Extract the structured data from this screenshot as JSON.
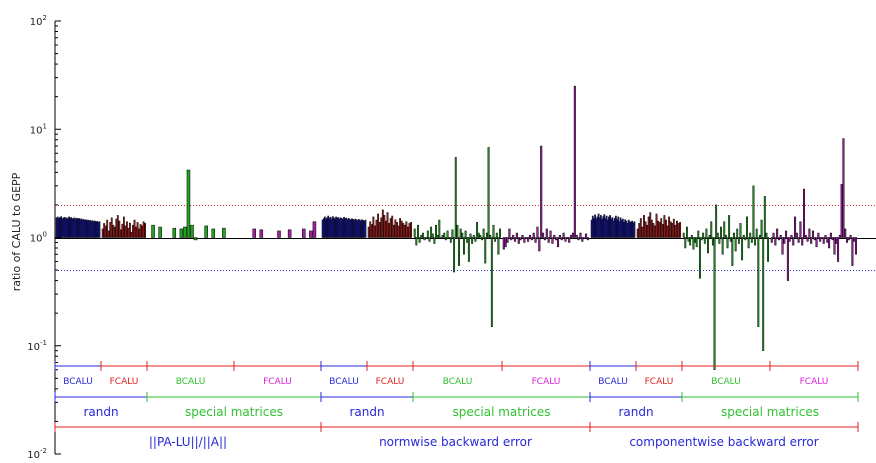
{
  "chart_data": {
    "type": "bar",
    "ylabel": "ratio of CALU to GEPP",
    "yscale": "log",
    "ylim": [
      0.01,
      100
    ],
    "yticks": [
      {
        "value": 100,
        "base": "10",
        "exp": "2"
      },
      {
        "value": 10,
        "base": "10",
        "exp": "1"
      },
      {
        "value": 1,
        "base": "10",
        "exp": "0"
      },
      {
        "value": 0.1,
        "base": "10",
        "exp": "-1"
      },
      {
        "value": 0.01,
        "base": "10",
        "exp": "-2"
      }
    ],
    "reference_lines": [
      {
        "value": 1,
        "style": "solid",
        "color": "#000000"
      },
      {
        "value": 2,
        "style": "dotted",
        "color": "#d03030"
      },
      {
        "value": 0.5,
        "style": "dotted",
        "color": "#3030d0"
      }
    ],
    "colors": {
      "BCALU_randn": "#1c1ca8",
      "FCALU_randn": "#a82020",
      "BCALU_special": "#1fa01f",
      "FCALU_special": "#a020a0",
      "label_blue": "#2828d8",
      "label_red": "#e02020",
      "label_green": "#30c030",
      "label_magenta": "#e020e0"
    },
    "groups": [
      {
        "name": "BCALU",
        "matrices": "randn",
        "metric": "||PA-LU||/||A||",
        "color": "#1c1ca8",
        "values": [
          1.52,
          1.55,
          1.5,
          1.53,
          1.56,
          1.49,
          1.51,
          1.54,
          1.5,
          1.52,
          1.48,
          1.55,
          1.51,
          1.53,
          1.49,
          1.5,
          1.52,
          1.47,
          1.51,
          1.48,
          1.5,
          1.46,
          1.49,
          1.45,
          1.47,
          1.44,
          1.46,
          1.43,
          1.45,
          1.42,
          1.44,
          1.41,
          1.43,
          1.4,
          1.42,
          1.39,
          1.41,
          1.38,
          1.4
        ]
      },
      {
        "name": "FCALU",
        "matrices": "randn",
        "metric": "||PA-LU||/||A||",
        "color": "#a82020",
        "values": [
          1.2,
          1.35,
          1.28,
          1.45,
          1.15,
          1.38,
          1.52,
          1.3,
          1.25,
          1.48,
          1.6,
          1.42,
          1.18,
          1.33,
          1.55,
          1.28,
          1.4,
          1.22,
          1.36,
          1.12,
          1.3,
          1.45,
          1.25,
          1.38,
          1.2,
          1.32,
          1.28,
          1.4,
          1.35
        ]
      },
      {
        "name": "BCALU",
        "matrices": "special matrices",
        "metric": "||PA-LU||/||A||",
        "color": "#1fa01f",
        "values": [
          null,
          1.3,
          null,
          1.25,
          null,
          null,
          null,
          1.22,
          null,
          1.2,
          1.25,
          4.2,
          1.3,
          0.95,
          null,
          null,
          1.28,
          null,
          1.2,
          null,
          null,
          1.22,
          null,
          null
        ]
      },
      {
        "name": "FCALU",
        "matrices": "special matrices",
        "metric": "||PA-LU||/||A||",
        "color": "#a020a0",
        "values": [
          null,
          null,
          null,
          null,
          null,
          1.2,
          null,
          1.18,
          null,
          null,
          null,
          null,
          1.15,
          null,
          null,
          1.18,
          null,
          null,
          null,
          1.2,
          null,
          1.15,
          1.4,
          null
        ]
      },
      {
        "name": "BCALU",
        "matrices": "randn",
        "metric": "normwise backward error",
        "color": "#1c1ca8",
        "values": [
          1.45,
          1.5,
          1.55,
          1.48,
          1.52,
          1.58,
          1.5,
          1.54,
          1.47,
          1.56,
          1.52,
          1.49,
          1.55,
          1.51,
          1.53,
          1.48,
          1.52,
          1.5,
          1.47,
          1.54,
          1.49,
          1.51,
          1.46,
          1.5,
          1.48,
          1.45,
          1.49,
          1.47,
          1.44,
          1.48,
          1.46,
          1.43,
          1.47,
          1.45,
          1.42,
          1.46,
          1.44,
          1.41,
          1.45
        ]
      },
      {
        "name": "FCALU",
        "matrices": "randn",
        "metric": "normwise backward error",
        "color": "#a82020",
        "values": [
          1.25,
          1.4,
          1.32,
          1.55,
          1.28,
          1.45,
          1.65,
          1.38,
          1.52,
          1.8,
          1.6,
          1.42,
          1.7,
          1.35,
          1.5,
          1.58,
          1.3,
          1.46,
          1.38,
          1.28,
          1.5,
          1.42,
          1.35,
          1.3,
          1.4,
          1.25,
          1.35,
          1.38
        ]
      },
      {
        "name": "BCALU",
        "matrices": "special matrices",
        "metric": "normwise backward error",
        "color": "#1fa01f",
        "values": [
          1.2,
          0.85,
          1.3,
          0.9,
          1.05,
          1.1,
          0.95,
          1.0,
          1.15,
          0.92,
          1.25,
          1.08,
          0.88,
          1.3,
          1.05,
          1.45,
          0.98,
          1.05,
          1.1,
          0.95,
          1.15,
          1.0,
          0.9,
          1.18,
          0.48,
          5.5,
          1.3,
          0.55,
          1.2,
          1.1,
          0.7,
          1.15,
          0.9,
          0.6,
          1.08,
          0.88,
          1.05,
          0.92,
          1.38,
          1.1,
          1.05,
          0.95,
          1.2,
          0.58,
          1.1,
          6.8,
          1.05,
          0.15,
          1.3,
          0.92,
          1.1,
          0.7,
          1.2
        ]
      },
      {
        "name": "FCALU",
        "matrices": "special matrices",
        "metric": "normwise backward error",
        "color": "#a020a0",
        "values": [
          0.78,
          0.82,
          0.9,
          1.2,
          0.95,
          1.05,
          0.92,
          1.1,
          0.88,
          0.95,
          1.05,
          0.9,
          0.98,
          0.92,
          1.05,
          0.95,
          1.1,
          0.9,
          1.25,
          0.75,
          7.0,
          1.1,
          0.95,
          1.2,
          0.9,
          1.15,
          0.88,
          1.05,
          0.95,
          0.82,
          1.05,
          0.95,
          1.1,
          0.92,
          1.0,
          0.9,
          1.05,
          1.1,
          25.0,
          1.05,
          0.95,
          1.1,
          0.92,
          1.0,
          1.08,
          0.95
        ]
      },
      {
        "name": "BCALU",
        "matrices": "randn",
        "metric": "componentwise backward error",
        "color": "#1c1ca8",
        "values": [
          1.45,
          1.58,
          1.5,
          1.62,
          1.48,
          1.55,
          1.65,
          1.52,
          1.6,
          1.47,
          1.56,
          1.63,
          1.5,
          1.58,
          1.45,
          1.55,
          1.6,
          1.48,
          1.53,
          1.42,
          1.5,
          1.58,
          1.46,
          1.55,
          1.4,
          1.52,
          1.44,
          1.48,
          1.38,
          1.46,
          1.42,
          1.35,
          1.45,
          1.4,
          1.38,
          1.42,
          1.36,
          1.4
        ]
      },
      {
        "name": "FCALU",
        "matrices": "randn",
        "metric": "componentwise backward error",
        "color": "#a82020",
        "values": [
          1.2,
          1.35,
          1.5,
          1.25,
          1.6,
          1.4,
          1.3,
          1.55,
          1.7,
          1.45,
          1.35,
          1.28,
          1.65,
          1.42,
          1.38,
          1.5,
          1.32,
          1.6,
          1.45,
          1.28,
          1.55,
          1.4,
          1.35,
          1.48,
          1.3,
          1.42,
          1.35,
          1.38
        ]
      },
      {
        "name": "BCALU",
        "matrices": "special matrices",
        "metric": "componentwise backward error",
        "color": "#1fa01f",
        "values": [
          1.1,
          0.8,
          1.25,
          0.92,
          0.85,
          1.05,
          0.78,
          0.9,
          0.82,
          1.15,
          0.42,
          0.95,
          1.1,
          0.88,
          1.2,
          0.72,
          1.05,
          1.4,
          0.85,
          0.06,
          2.0,
          1.1,
          0.88,
          1.25,
          0.7,
          1.4,
          1.05,
          0.8,
          1.6,
          0.92,
          0.55,
          1.1,
          0.75,
          1.2,
          0.88,
          1.35,
          0.62,
          1.05,
          0.95,
          1.55,
          0.8,
          1.1,
          0.9,
          3.0,
          0.85,
          1.2,
          0.15,
          1.05,
          1.45,
          0.09,
          2.4,
          1.1,
          0.6
        ]
      },
      {
        "name": "FCALU",
        "matrices": "special matrices",
        "metric": "componentwise backward error",
        "color": "#a020a0",
        "values": [
          0.9,
          1.1,
          0.85,
          1.2,
          0.95,
          1.05,
          0.7,
          0.88,
          1.15,
          0.4,
          0.92,
          1.05,
          0.85,
          1.55,
          1.1,
          0.9,
          1.4,
          0.85,
          2.8,
          1.05,
          0.92,
          1.2,
          0.88,
          1.15,
          0.95,
          0.82,
          1.1,
          0.92,
          1.0,
          0.88,
          1.05,
          0.9,
          0.8,
          1.1,
          0.95,
          0.7,
          0.88,
          0.6,
          1.05,
          3.1,
          8.2,
          1.2,
          0.9,
          0.95,
          1.05,
          0.55,
          0.92,
          0.7
        ]
      }
    ],
    "label_rows": {
      "row1": [
        "BCALU",
        "FCALU",
        "BCALU",
        "FCALU",
        "BCALU",
        "FCALU",
        "BCALU",
        "FCALU",
        "BCALU",
        "FCALU",
        "BCALU",
        "FCALU"
      ],
      "row2": [
        "randn",
        "special matrices",
        "randn",
        "special matrices",
        "randn",
        "special matrices"
      ],
      "row3": [
        "||PA-LU||/||A||",
        "normwise backward error",
        "componentwise backward error"
      ]
    }
  }
}
